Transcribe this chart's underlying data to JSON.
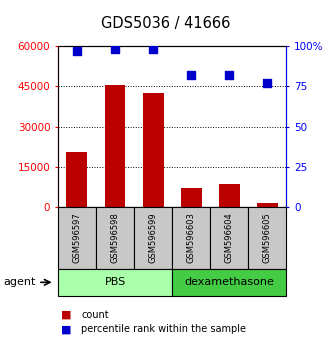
{
  "title": "GDS5036 / 41666",
  "samples": [
    "GSM596597",
    "GSM596598",
    "GSM596599",
    "GSM596603",
    "GSM596604",
    "GSM596605"
  ],
  "counts": [
    20500,
    45500,
    42500,
    7000,
    8500,
    1500
  ],
  "percentiles": [
    97,
    98,
    98,
    82,
    82,
    77
  ],
  "left_ylim": [
    0,
    60000
  ],
  "right_ylim": [
    0,
    100
  ],
  "left_yticks": [
    0,
    15000,
    30000,
    45000,
    60000
  ],
  "right_yticks": [
    0,
    25,
    50,
    75,
    100
  ],
  "right_yticklabels": [
    "0",
    "25",
    "50",
    "75",
    "100%"
  ],
  "left_yticklabels": [
    "0",
    "15000",
    "30000",
    "45000",
    "60000"
  ],
  "groups": [
    {
      "label": "PBS",
      "indices": [
        0,
        1,
        2
      ],
      "color": "#aaffaa"
    },
    {
      "label": "dexamethasone",
      "indices": [
        3,
        4,
        5
      ],
      "color": "#44cc44"
    }
  ],
  "bar_color": "#bb0000",
  "scatter_color": "#0000cc",
  "bar_width": 0.55,
  "agent_label": "agent",
  "legend_count_label": "count",
  "legend_percentile_label": "percentile rank within the sample",
  "sample_box_color": "#c8c8c8",
  "figsize": [
    3.31,
    3.54
  ],
  "dpi": 100
}
